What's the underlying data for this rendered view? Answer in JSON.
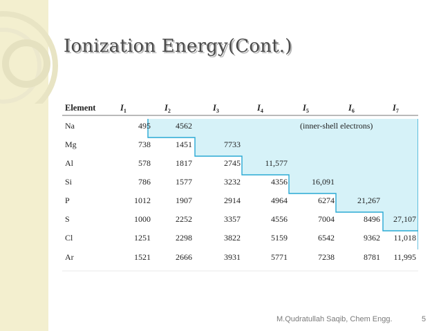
{
  "slide": {
    "title": "Ionization Energy(Cont.)",
    "footer": "M.Qudratullah Saqib, Chem Engg.",
    "page_number": "5"
  },
  "table": {
    "header_element": "Element",
    "ionization_columns": [
      {
        "main": "I",
        "sub": "1"
      },
      {
        "main": "I",
        "sub": "2"
      },
      {
        "main": "I",
        "sub": "3"
      },
      {
        "main": "I",
        "sub": "4"
      },
      {
        "main": "I",
        "sub": "5"
      },
      {
        "main": "I",
        "sub": "6"
      },
      {
        "main": "I",
        "sub": "7"
      }
    ],
    "annotation": "(inner-shell electrons)",
    "rows": [
      {
        "element": "Na",
        "values": [
          "495",
          "4562",
          "",
          "",
          "",
          "",
          ""
        ]
      },
      {
        "element": "Mg",
        "values": [
          "738",
          "1451",
          "7733",
          "",
          "",
          "",
          ""
        ]
      },
      {
        "element": "Al",
        "values": [
          "578",
          "1817",
          "2745",
          "11,577",
          "",
          "",
          ""
        ]
      },
      {
        "element": "Si",
        "values": [
          "786",
          "1577",
          "3232",
          "4356",
          "16,091",
          "",
          ""
        ]
      },
      {
        "element": "P",
        "values": [
          "1012",
          "1907",
          "2914",
          "4964",
          "6274",
          "21,267",
          ""
        ]
      },
      {
        "element": "S",
        "values": [
          "1000",
          "2252",
          "3357",
          "4556",
          "7004",
          "8496",
          "27,107"
        ]
      },
      {
        "element": "Cl",
        "values": [
          "1251",
          "2298",
          "3822",
          "5159",
          "6542",
          "9362",
          "11,018"
        ]
      },
      {
        "element": "Ar",
        "values": [
          "1521",
          "2666",
          "3931",
          "5771",
          "7238",
          "8781",
          "11,995"
        ]
      }
    ],
    "inner_shell_start_column": [
      1,
      2,
      3,
      4,
      5,
      6,
      7,
      99
    ]
  },
  "colors": {
    "highlight": "#d6f2f8",
    "step_line": "#29a9d4",
    "band": "#f3efcf"
  }
}
